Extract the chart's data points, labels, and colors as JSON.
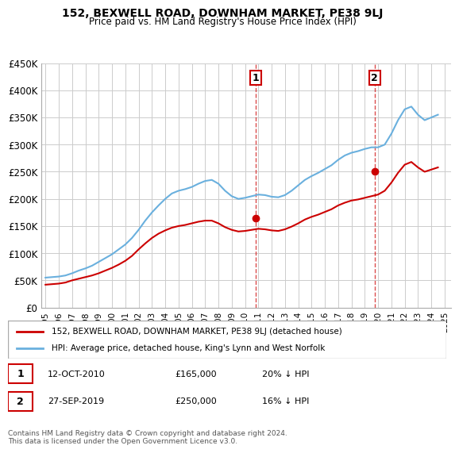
{
  "title": "152, BEXWELL ROAD, DOWNHAM MARKET, PE38 9LJ",
  "subtitle": "Price paid vs. HM Land Registry's House Price Index (HPI)",
  "xlabel": "",
  "ylabel": "",
  "ylim": [
    0,
    450000
  ],
  "yticks": [
    0,
    50000,
    100000,
    150000,
    200000,
    250000,
    300000,
    350000,
    400000,
    450000
  ],
  "ytick_labels": [
    "£0",
    "£50K",
    "£100K",
    "£150K",
    "£200K",
    "£250K",
    "£300K",
    "£350K",
    "£400K",
    "£450K"
  ],
  "legend_line1": "152, BEXWELL ROAD, DOWNHAM MARKET, PE38 9LJ (detached house)",
  "legend_line2": "HPI: Average price, detached house, King's Lynn and West Norfolk",
  "annotation1_label": "1",
  "annotation1_date": "12-OCT-2010",
  "annotation1_price": "£165,000",
  "annotation1_note": "20% ↓ HPI",
  "annotation2_label": "2",
  "annotation2_date": "27-SEP-2019",
  "annotation2_price": "£250,000",
  "annotation2_note": "16% ↓ HPI",
  "footer": "Contains HM Land Registry data © Crown copyright and database right 2024.\nThis data is licensed under the Open Government Licence v3.0.",
  "hpi_color": "#6ab0de",
  "price_color": "#cc0000",
  "annotation_vline_color": "#cc0000",
  "annotation_vline_style": "--",
  "background_color": "#ffffff",
  "grid_color": "#cccccc",
  "hpi_x": [
    1995.0,
    1995.5,
    1996.0,
    1996.5,
    1997.0,
    1997.5,
    1998.0,
    1998.5,
    1999.0,
    1999.5,
    2000.0,
    2000.5,
    2001.0,
    2001.5,
    2002.0,
    2002.5,
    2003.0,
    2003.5,
    2004.0,
    2004.5,
    2005.0,
    2005.5,
    2006.0,
    2006.5,
    2007.0,
    2007.5,
    2008.0,
    2008.5,
    2009.0,
    2009.5,
    2010.0,
    2010.5,
    2011.0,
    2011.5,
    2012.0,
    2012.5,
    2013.0,
    2013.5,
    2014.0,
    2014.5,
    2015.0,
    2015.5,
    2016.0,
    2016.5,
    2017.0,
    2017.5,
    2018.0,
    2018.5,
    2019.0,
    2019.5,
    2020.0,
    2020.5,
    2021.0,
    2021.5,
    2022.0,
    2022.5,
    2023.0,
    2023.5,
    2024.0,
    2024.5
  ],
  "hpi_y": [
    55000,
    56000,
    57000,
    59000,
    63000,
    68000,
    72000,
    77000,
    84000,
    91000,
    98000,
    107000,
    116000,
    128000,
    143000,
    160000,
    175000,
    188000,
    200000,
    210000,
    215000,
    218000,
    222000,
    228000,
    233000,
    235000,
    228000,
    215000,
    205000,
    200000,
    202000,
    205000,
    208000,
    207000,
    204000,
    203000,
    207000,
    215000,
    225000,
    235000,
    242000,
    248000,
    255000,
    262000,
    272000,
    280000,
    285000,
    288000,
    292000,
    295000,
    295000,
    300000,
    320000,
    345000,
    365000,
    370000,
    355000,
    345000,
    350000,
    355000
  ],
  "price_x": [
    1995.0,
    1995.5,
    1996.0,
    1996.5,
    1997.0,
    1997.5,
    1998.0,
    1998.5,
    1999.0,
    1999.5,
    2000.0,
    2000.5,
    2001.0,
    2001.5,
    2002.0,
    2002.5,
    2003.0,
    2003.5,
    2004.0,
    2004.5,
    2005.0,
    2005.5,
    2006.0,
    2006.5,
    2007.0,
    2007.5,
    2008.0,
    2008.5,
    2009.0,
    2009.5,
    2010.0,
    2010.5,
    2011.0,
    2011.5,
    2012.0,
    2012.5,
    2013.0,
    2013.5,
    2014.0,
    2014.5,
    2015.0,
    2015.5,
    2016.0,
    2016.5,
    2017.0,
    2017.5,
    2018.0,
    2018.5,
    2019.0,
    2019.5,
    2020.0,
    2020.5,
    2021.0,
    2021.5,
    2022.0,
    2022.5,
    2023.0,
    2023.5,
    2024.0,
    2024.5
  ],
  "price_y": [
    42000,
    43000,
    44000,
    46000,
    50000,
    53000,
    56000,
    59000,
    63000,
    68000,
    73000,
    79000,
    86000,
    95000,
    107000,
    118000,
    128000,
    136000,
    142000,
    147000,
    150000,
    152000,
    155000,
    158000,
    160000,
    160000,
    155000,
    148000,
    143000,
    140000,
    141000,
    143000,
    145000,
    144000,
    142000,
    141000,
    144000,
    149000,
    155000,
    162000,
    167000,
    171000,
    176000,
    181000,
    188000,
    193000,
    197000,
    199000,
    202000,
    205000,
    208000,
    215000,
    230000,
    248000,
    263000,
    268000,
    258000,
    250000,
    254000,
    258000
  ],
  "sale1_x": 2010.79,
  "sale1_y": 165000,
  "sale2_x": 2019.74,
  "sale2_y": 250000,
  "xtick_years": [
    1995,
    1996,
    1997,
    1998,
    1999,
    2000,
    2001,
    2002,
    2003,
    2004,
    2005,
    2006,
    2007,
    2008,
    2009,
    2010,
    2011,
    2012,
    2013,
    2014,
    2015,
    2016,
    2017,
    2018,
    2019,
    2020,
    2021,
    2022,
    2023,
    2024,
    2025
  ]
}
